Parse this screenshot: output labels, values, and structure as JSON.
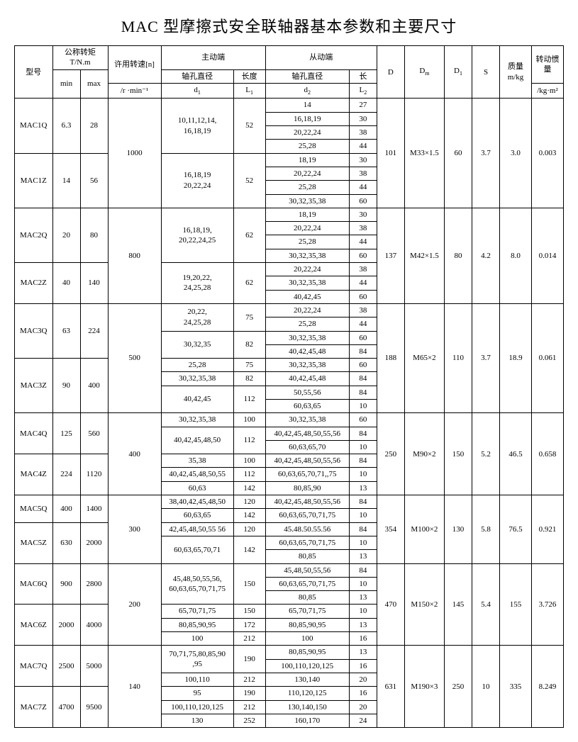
{
  "title": "MAC 型摩擦式安全联轴器基本参数和主要尺寸",
  "headers": {
    "model": "型号",
    "nominal_torque": "公称转矩\nT/N.m",
    "min": "min",
    "max": "max",
    "allow_speed": "许用转速[n]",
    "allow_speed_unit": "/r ·min⁻¹",
    "active_end": "主动端",
    "driven_end": "从动端",
    "shaft_dia": "轴孔直径",
    "length": "长度",
    "len_short": "长",
    "d1": "d₁",
    "L1": "L₁",
    "d2": "d₂",
    "L2": "L₂",
    "D": "D",
    "Dm": "Dₘ",
    "D1": "D₁",
    "S": "S",
    "mass": "质量\nm/kg",
    "inertia": "转动惯量",
    "inertia_unit": "/kg·m²"
  },
  "groups": [
    {
      "speed": "1000",
      "D": "101",
      "Dm": "M33×1.5",
      "D1": "60",
      "S": "3.7",
      "mass": "3.0",
      "inertia": "0.003",
      "models": [
        {
          "name": "MAC1Q",
          "min": "6.3",
          "max": "28",
          "d1rows": [
            {
              "d1": "10,11,12,14,\n16,18,19",
              "L1": "52",
              "d2rows": [
                {
                  "d2": "14",
                  "L2": "27"
                },
                {
                  "d2": "16,18,19",
                  "L2": "30"
                },
                {
                  "d2": "20,22,24",
                  "L2": "38"
                },
                {
                  "d2": "25,28",
                  "L2": "44"
                }
              ]
            }
          ]
        },
        {
          "name": "MAC1Z",
          "min": "14",
          "max": "56",
          "d1rows": [
            {
              "d1": "16,18,19\n20,22,24",
              "L1": "52",
              "d2rows": [
                {
                  "d2": "18,19",
                  "L2": "30"
                },
                {
                  "d2": "20,22,24",
                  "L2": "38"
                },
                {
                  "d2": "25,28",
                  "L2": "44"
                },
                {
                  "d2": "30,32,35,38",
                  "L2": "60"
                }
              ]
            }
          ]
        }
      ]
    },
    {
      "speed": "800",
      "D": "137",
      "Dm": "M42×1.5",
      "D1": "80",
      "S": "4.2",
      "mass": "8.0",
      "inertia": "0.014",
      "models": [
        {
          "name": "MAC2Q",
          "min": "20",
          "max": "80",
          "d1rows": [
            {
              "d1": "16,18,19,\n20,22,24,25",
              "L1": "62",
              "d2rows": [
                {
                  "d2": "18,19",
                  "L2": "30"
                },
                {
                  "d2": "20,22,24",
                  "L2": "38"
                },
                {
                  "d2": "25,28",
                  "L2": "44"
                },
                {
                  "d2": "30,32,35,38",
                  "L2": "60"
                }
              ]
            }
          ]
        },
        {
          "name": "MAC2Z",
          "min": "40",
          "max": "140",
          "d1rows": [
            {
              "d1": "19,20,22,\n24,25,28",
              "L1": "62",
              "d2rows": [
                {
                  "d2": "20,22,24",
                  "L2": "38"
                },
                {
                  "d2": "30,32,35,38",
                  "L2": "44"
                },
                {
                  "d2": "40,42,45",
                  "L2": "60"
                }
              ]
            }
          ]
        }
      ]
    },
    {
      "speed": "500",
      "D": "188",
      "Dm": "M65×2",
      "D1": "110",
      "S": "3.7",
      "mass": "18.9",
      "inertia": "0.061",
      "models": [
        {
          "name": "MAC3Q",
          "min": "63",
          "max": "224",
          "d1rows": [
            {
              "d1": "20,22,\n24,25,28",
              "L1": "75",
              "d2rows": [
                {
                  "d2": "20,22,24",
                  "L2": "38"
                },
                {
                  "d2": "25,28",
                  "L2": "44"
                }
              ]
            },
            {
              "d1": "30,32,35",
              "L1": "82",
              "d2rows": [
                {
                  "d2": "30,32,35,38",
                  "L2": "60"
                },
                {
                  "d2": "40,42,45,48",
                  "L2": "84"
                }
              ]
            }
          ]
        },
        {
          "name": "MAC3Z",
          "min": "90",
          "max": "400",
          "d1rows": [
            {
              "d1": "25,28",
              "L1": "75",
              "d2rows": [
                {
                  "d2": "30,32,35,38",
                  "L2": "60"
                }
              ]
            },
            {
              "d1": "30,32,35,38",
              "L1": "82",
              "d2rows": [
                {
                  "d2": "40,42,45,48",
                  "L2": "84"
                }
              ]
            },
            {
              "d1": "40,42,45",
              "L1": "112",
              "d2rows": [
                {
                  "d2": "50,55,56",
                  "L2": "84"
                },
                {
                  "d2": "60,63,65",
                  "L2": "10"
                }
              ]
            }
          ]
        }
      ]
    },
    {
      "speed": "400",
      "D": "250",
      "Dm": "M90×2",
      "D1": "150",
      "S": "5.2",
      "mass": "46.5",
      "inertia": "0.658",
      "models": [
        {
          "name": "MAC4Q",
          "min": "125",
          "max": "560",
          "d1rows": [
            {
              "d1": "30,32,35,38",
              "L1": "100",
              "d2rows": [
                {
                  "d2": "30,32,35,38",
                  "L2": "60"
                }
              ]
            },
            {
              "d1": "40,42,45,48,50",
              "L1": "112",
              "d2rows": [
                {
                  "d2": "40,42,45,48,50,55,56",
                  "L2": "84"
                },
                {
                  "d2": "60,63,65,70",
                  "L2": "10"
                }
              ]
            }
          ]
        },
        {
          "name": "MAC4Z",
          "min": "224",
          "max": "1120",
          "d1rows": [
            {
              "d1": "35,38",
              "L1": "100",
              "d2rows": [
                {
                  "d2": "40,42,45,48,50,55,56",
                  "L2": "84"
                }
              ]
            },
            {
              "d1": "40,42,45,48,50,55",
              "L1": "112",
              "d2rows": [
                {
                  "d2": "60,63,65,70,71,,75",
                  "L2": "10"
                }
              ]
            },
            {
              "d1": "60,63",
              "L1": "142",
              "d2rows": [
                {
                  "d2": "80,85,90",
                  "L2": "13"
                }
              ]
            }
          ]
        }
      ]
    },
    {
      "speed": "300",
      "D": "354",
      "Dm": "M100×2",
      "D1": "130",
      "S": "5.8",
      "mass": "76.5",
      "inertia": "0.921",
      "models": [
        {
          "name": "MAC5Q",
          "min": "400",
          "max": "1400",
          "d1rows": [
            {
              "d1": "38,40,42,45,48,50",
              "L1": "120",
              "d2rows": [
                {
                  "d2": "40,42,45,48,50,55,56",
                  "L2": "84"
                }
              ]
            },
            {
              "d1": "60,63,65",
              "L1": "142",
              "d2rows": [
                {
                  "d2": "60,63,65,70,71,75",
                  "L2": "10"
                }
              ]
            }
          ]
        },
        {
          "name": "MAC5Z",
          "min": "630",
          "max": "2000",
          "d1rows": [
            {
              "d1": "42,45,48,50,55 56",
              "L1": "120",
              "d2rows": [
                {
                  "d2": "45.48.50.55.56",
                  "L2": "84"
                }
              ]
            },
            {
              "d1": "60,63,65,70,71",
              "L1": "142",
              "d2rows": [
                {
                  "d2": "60,63,65,70,71,75",
                  "L2": "10"
                },
                {
                  "d2": "80,85",
                  "L2": "13"
                }
              ]
            }
          ]
        }
      ]
    },
    {
      "speed": "200",
      "D": "470",
      "Dm": "M150×2",
      "D1": "145",
      "S": "5.4",
      "mass": "155",
      "inertia": "3.726",
      "models": [
        {
          "name": "MAC6Q",
          "min": "900",
          "max": "2800",
          "d1rows": [
            {
              "d1": "45,48,50,55,56,\n60,63,65,70,71,75",
              "L1": "150",
              "d2rows": [
                {
                  "d2": "45,48,50,55,56",
                  "L2": "84"
                },
                {
                  "d2": "60,63,65,70,71,75",
                  "L2": "10"
                },
                {
                  "d2": "80,85",
                  "L2": "13"
                }
              ]
            }
          ]
        },
        {
          "name": "MAC6Z",
          "min": "2000",
          "max": "4000",
          "d1rows": [
            {
              "d1": "65,70,71,75",
              "L1": "150",
              "d2rows": [
                {
                  "d2": "65,70,71,75",
                  "L2": "10"
                }
              ]
            },
            {
              "d1": "80,85,90,95",
              "L1": "172",
              "d2rows": [
                {
                  "d2": "80,85,90,95",
                  "L2": "13"
                }
              ]
            },
            {
              "d1": "100",
              "L1": "212",
              "d2rows": [
                {
                  "d2": "100",
                  "L2": "16"
                }
              ]
            }
          ]
        }
      ]
    },
    {
      "speed": "140",
      "D": "631",
      "Dm": "M190×3",
      "D1": "250",
      "S": "10",
      "mass": "335",
      "inertia": "8.249",
      "models": [
        {
          "name": "MAC7Q",
          "min": "2500",
          "max": "5000",
          "d1rows": [
            {
              "d1": "70,71,75,80,85,90\n,95",
              "L1": "190",
              "d2rows": [
                {
                  "d2": "80,85,90,95",
                  "L2": "13"
                },
                {
                  "d2": "100,110,120,125",
                  "L2": "16"
                }
              ]
            },
            {
              "d1": "100,110",
              "L1": "212",
              "d2rows": [
                {
                  "d2": "130,140",
                  "L2": "20"
                }
              ]
            }
          ]
        },
        {
          "name": "MAC7Z",
          "min": "4700",
          "max": "9500",
          "d1rows": [
            {
              "d1": "95",
              "L1": "190",
              "d2rows": [
                {
                  "d2": "110,120,125",
                  "L2": "16"
                }
              ]
            },
            {
              "d1": "100,110,120,125",
              "L1": "212",
              "d2rows": [
                {
                  "d2": "130,140,150",
                  "L2": "20"
                }
              ]
            },
            {
              "d1": "130",
              "L1": "252",
              "d2rows": [
                {
                  "d2": "160,170",
                  "L2": "24"
                }
              ]
            }
          ]
        }
      ]
    }
  ]
}
